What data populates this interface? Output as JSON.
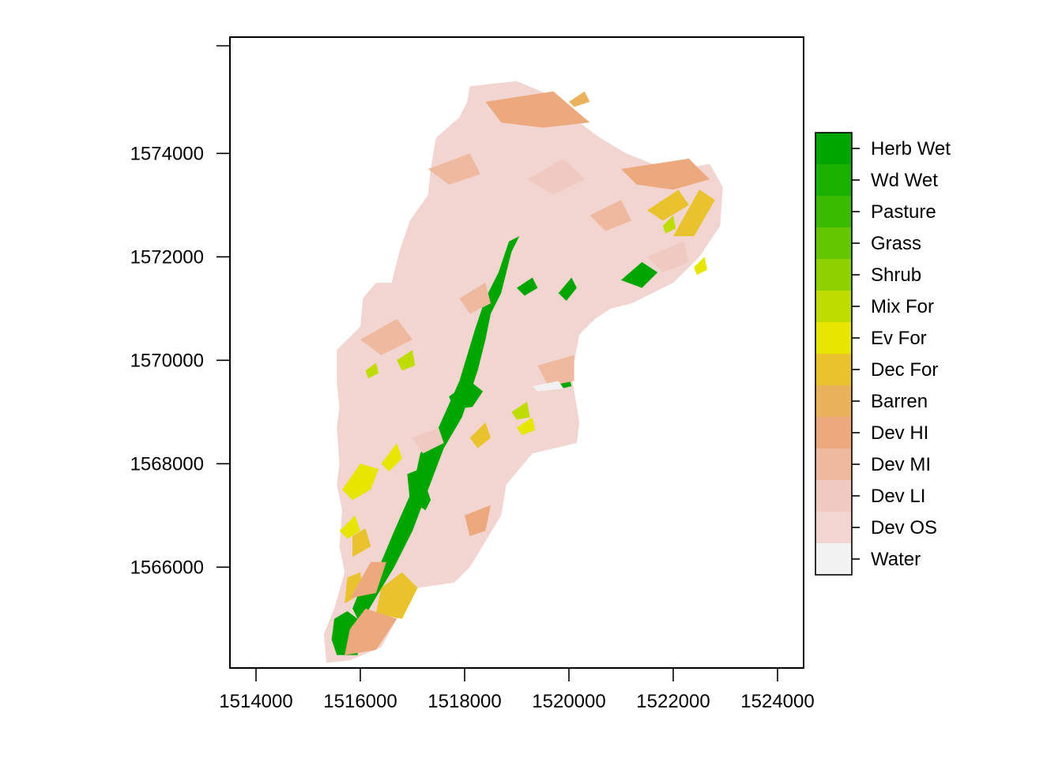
{
  "chart_data": {
    "type": "heatmap",
    "subtype": "land-cover raster map",
    "title": "",
    "xlabel": "",
    "ylabel": "",
    "xlim": [
      1513500,
      1524500
    ],
    "ylim": [
      1564050,
      1576250
    ],
    "x_ticks": [
      1514000,
      1516000,
      1518000,
      1520000,
      1522000,
      1524000
    ],
    "y_ticks": [
      1566000,
      1568000,
      1570000,
      1572000,
      1574000
    ],
    "x_tick_labels": [
      "1514000",
      "1516000",
      "1518000",
      "1520000",
      "1522000",
      "1524000"
    ],
    "y_tick_labels": [
      "1566000",
      "1568000",
      "1570000",
      "1572000",
      "1574000"
    ],
    "grid": false,
    "legend_position": "right",
    "background_color": "#f2d4d0",
    "legend": [
      {
        "label": "Herb Wet",
        "color": "#00a600"
      },
      {
        "label": "Wd Wet",
        "color": "#19b000"
      },
      {
        "label": "Pasture",
        "color": "#3bbb00"
      },
      {
        "label": "Grass",
        "color": "#63c600"
      },
      {
        "label": "Shrub",
        "color": "#8fd100"
      },
      {
        "label": "Mix For",
        "color": "#bfdc00"
      },
      {
        "label": "Ev For",
        "color": "#e6e600"
      },
      {
        "label": "Dec For",
        "color": "#e8c32e"
      },
      {
        "label": "Barren",
        "color": "#ebb25e"
      },
      {
        "label": "Dev HI",
        "color": "#eda97e"
      },
      {
        "label": "Dev MI",
        "color": "#eeb99f"
      },
      {
        "label": "Dev LI",
        "color": "#f0c9c0"
      },
      {
        "label": "Dev OS",
        "color": "#f2d4d0"
      },
      {
        "label": "Water",
        "color": "#f2f2f2"
      }
    ],
    "region_boundary": [
      [
        1515350,
        1564150
      ],
      [
        1515300,
        1564700
      ],
      [
        1515500,
        1565200
      ],
      [
        1515700,
        1565900
      ],
      [
        1515600,
        1566400
      ],
      [
        1515650,
        1567100
      ],
      [
        1515550,
        1567600
      ],
      [
        1515600,
        1568000
      ],
      [
        1515550,
        1568700
      ],
      [
        1515600,
        1569100
      ],
      [
        1515550,
        1569550
      ],
      [
        1515550,
        1570200
      ],
      [
        1515750,
        1570400
      ],
      [
        1516000,
        1570650
      ],
      [
        1516050,
        1571200
      ],
      [
        1516300,
        1571500
      ],
      [
        1516600,
        1571500
      ],
      [
        1516750,
        1572100
      ],
      [
        1516950,
        1572700
      ],
      [
        1517300,
        1573200
      ],
      [
        1517350,
        1573700
      ],
      [
        1517450,
        1574300
      ],
      [
        1517900,
        1574700
      ],
      [
        1518050,
        1575000
      ],
      [
        1518100,
        1575300
      ],
      [
        1519000,
        1575400
      ],
      [
        1519700,
        1575100
      ],
      [
        1520200,
        1574600
      ],
      [
        1520600,
        1574300
      ],
      [
        1521100,
        1574000
      ],
      [
        1521600,
        1573800
      ],
      [
        1522200,
        1573700
      ],
      [
        1522700,
        1573800
      ],
      [
        1522950,
        1573350
      ],
      [
        1522900,
        1572600
      ],
      [
        1522500,
        1572000
      ],
      [
        1522000,
        1571500
      ],
      [
        1521200,
        1571100
      ],
      [
        1520800,
        1571000
      ],
      [
        1520500,
        1570800
      ],
      [
        1520200,
        1570500
      ],
      [
        1520050,
        1569700
      ],
      [
        1520200,
        1568800
      ],
      [
        1520150,
        1568400
      ],
      [
        1519300,
        1568200
      ],
      [
        1518800,
        1567600
      ],
      [
        1518700,
        1567000
      ],
      [
        1518400,
        1566500
      ],
      [
        1518100,
        1566000
      ],
      [
        1517800,
        1565700
      ],
      [
        1517100,
        1565600
      ],
      [
        1516700,
        1565000
      ],
      [
        1516400,
        1564450
      ],
      [
        1515800,
        1564200
      ]
    ],
    "patches": [
      {
        "class": "Herb Wet",
        "polygon": [
          [
            1515550,
            1564300
          ],
          [
            1515950,
            1564300
          ],
          [
            1515950,
            1565000
          ],
          [
            1515750,
            1565150
          ],
          [
            1515500,
            1565000
          ],
          [
            1515450,
            1564600
          ]
        ]
      },
      {
        "class": "Herb Wet",
        "polygon": [
          [
            1516000,
            1564900
          ],
          [
            1516350,
            1565500
          ],
          [
            1516650,
            1566000
          ],
          [
            1517000,
            1566700
          ],
          [
            1517300,
            1567500
          ],
          [
            1517600,
            1568300
          ],
          [
            1517950,
            1568900
          ],
          [
            1518250,
            1569800
          ],
          [
            1518400,
            1570400
          ],
          [
            1518500,
            1570900
          ],
          [
            1518700,
            1571300
          ],
          [
            1518900,
            1572100
          ],
          [
            1519050,
            1572400
          ],
          [
            1518850,
            1572300
          ],
          [
            1518650,
            1571700
          ],
          [
            1518400,
            1571200
          ],
          [
            1518200,
            1570600
          ],
          [
            1517900,
            1569600
          ],
          [
            1517500,
            1568700
          ],
          [
            1517150,
            1568200
          ],
          [
            1517000,
            1567500
          ],
          [
            1516650,
            1566700
          ],
          [
            1516400,
            1566100
          ],
          [
            1516050,
            1565700
          ],
          [
            1515850,
            1565200
          ]
        ]
      },
      {
        "class": "Herb Wet",
        "polygon": [
          [
            1516900,
            1567800
          ],
          [
            1517150,
            1567900
          ],
          [
            1517350,
            1567300
          ],
          [
            1517250,
            1567100
          ],
          [
            1516950,
            1567300
          ]
        ]
      },
      {
        "class": "Herb Wet",
        "polygon": [
          [
            1517700,
            1569300
          ],
          [
            1518100,
            1569600
          ],
          [
            1518350,
            1569400
          ],
          [
            1518150,
            1569100
          ],
          [
            1517800,
            1569050
          ]
        ]
      },
      {
        "class": "Herb Wet",
        "polygon": [
          [
            1519000,
            1571400
          ],
          [
            1519300,
            1571600
          ],
          [
            1519400,
            1571400
          ],
          [
            1519150,
            1571250
          ]
        ]
      },
      {
        "class": "Herb Wet",
        "polygon": [
          [
            1519800,
            1571300
          ],
          [
            1520050,
            1571600
          ],
          [
            1520150,
            1571400
          ],
          [
            1519950,
            1571150
          ]
        ]
      },
      {
        "class": "Herb Wet",
        "polygon": [
          [
            1519800,
            1569600
          ],
          [
            1520000,
            1569700
          ],
          [
            1520050,
            1569500
          ],
          [
            1519850,
            1569450
          ]
        ]
      },
      {
        "class": "Herb Wet",
        "polygon": [
          [
            1521000,
            1571550
          ],
          [
            1521400,
            1571900
          ],
          [
            1521700,
            1571700
          ],
          [
            1521400,
            1571400
          ]
        ]
      },
      {
        "class": "Dec For",
        "polygon": [
          [
            1516300,
            1565100
          ],
          [
            1516800,
            1565000
          ],
          [
            1517100,
            1565600
          ],
          [
            1516800,
            1565900
          ],
          [
            1516400,
            1565600
          ]
        ]
      },
      {
        "class": "Dec For",
        "polygon": [
          [
            1515700,
            1565300
          ],
          [
            1516050,
            1565500
          ],
          [
            1516000,
            1565900
          ],
          [
            1515750,
            1565800
          ]
        ]
      },
      {
        "class": "Dec For",
        "polygon": [
          [
            1515850,
            1566200
          ],
          [
            1516200,
            1566400
          ],
          [
            1516100,
            1566750
          ],
          [
            1515850,
            1566600
          ]
        ]
      },
      {
        "class": "Dec For",
        "polygon": [
          [
            1522000,
            1572400
          ],
          [
            1522500,
            1573300
          ],
          [
            1522800,
            1573100
          ],
          [
            1522400,
            1572400
          ]
        ]
      },
      {
        "class": "Dec For",
        "polygon": [
          [
            1521500,
            1572900
          ],
          [
            1522100,
            1573300
          ],
          [
            1522300,
            1573000
          ],
          [
            1521800,
            1572700
          ]
        ]
      },
      {
        "class": "Dec For",
        "polygon": [
          [
            1518100,
            1568500
          ],
          [
            1518400,
            1568800
          ],
          [
            1518500,
            1568500
          ],
          [
            1518250,
            1568300
          ]
        ]
      },
      {
        "class": "Ev For",
        "polygon": [
          [
            1515650,
            1567500
          ],
          [
            1516000,
            1568000
          ],
          [
            1516350,
            1567900
          ],
          [
            1516200,
            1567500
          ],
          [
            1515850,
            1567300
          ]
        ]
      },
      {
        "class": "Ev For",
        "polygon": [
          [
            1516400,
            1568000
          ],
          [
            1516700,
            1568400
          ],
          [
            1516800,
            1568100
          ],
          [
            1516550,
            1567850
          ]
        ]
      },
      {
        "class": "Ev For",
        "polygon": [
          [
            1515600,
            1566700
          ],
          [
            1515900,
            1567000
          ],
          [
            1516000,
            1566700
          ],
          [
            1515750,
            1566550
          ]
        ]
      },
      {
        "class": "Ev For",
        "polygon": [
          [
            1519000,
            1568700
          ],
          [
            1519300,
            1568900
          ],
          [
            1519350,
            1568650
          ],
          [
            1519100,
            1568550
          ]
        ]
      },
      {
        "class": "Ev For",
        "polygon": [
          [
            1522400,
            1571800
          ],
          [
            1522600,
            1572000
          ],
          [
            1522650,
            1571750
          ],
          [
            1522450,
            1571650
          ]
        ]
      },
      {
        "class": "Mix For",
        "polygon": [
          [
            1516700,
            1570000
          ],
          [
            1517000,
            1570200
          ],
          [
            1517050,
            1569900
          ],
          [
            1516800,
            1569800
          ]
        ]
      },
      {
        "class": "Mix For",
        "polygon": [
          [
            1518900,
            1569000
          ],
          [
            1519200,
            1569200
          ],
          [
            1519250,
            1568900
          ],
          [
            1519000,
            1568850
          ]
        ]
      },
      {
        "class": "Mix For",
        "polygon": [
          [
            1521800,
            1572600
          ],
          [
            1522000,
            1572800
          ],
          [
            1522050,
            1572550
          ],
          [
            1521850,
            1572450
          ]
        ]
      },
      {
        "class": "Mix For",
        "polygon": [
          [
            1516100,
            1569800
          ],
          [
            1516300,
            1569950
          ],
          [
            1516350,
            1569750
          ],
          [
            1516150,
            1569650
          ]
        ]
      },
      {
        "class": "Barren",
        "polygon": [
          [
            1520000,
            1575000
          ],
          [
            1520300,
            1575200
          ],
          [
            1520400,
            1575000
          ],
          [
            1520100,
            1574900
          ]
        ]
      },
      {
        "class": "Dev HI",
        "polygon": [
          [
            1518400,
            1575000
          ],
          [
            1519700,
            1575200
          ],
          [
            1520400,
            1574600
          ],
          [
            1519500,
            1574500
          ],
          [
            1518700,
            1574600
          ]
        ]
      },
      {
        "class": "Dev HI",
        "polygon": [
          [
            1515700,
            1564300
          ],
          [
            1516300,
            1564400
          ],
          [
            1516700,
            1565000
          ],
          [
            1516100,
            1565200
          ],
          [
            1515800,
            1564800
          ]
        ]
      },
      {
        "class": "Dev HI",
        "polygon": [
          [
            1521000,
            1573700
          ],
          [
            1522300,
            1573900
          ],
          [
            1522700,
            1573500
          ],
          [
            1522000,
            1573300
          ],
          [
            1521300,
            1573400
          ]
        ]
      },
      {
        "class": "Dev HI",
        "polygon": [
          [
            1515800,
            1565400
          ],
          [
            1516200,
            1566100
          ],
          [
            1516500,
            1566100
          ],
          [
            1516300,
            1565500
          ]
        ]
      },
      {
        "class": "Dev HI",
        "polygon": [
          [
            1518000,
            1567000
          ],
          [
            1518500,
            1567200
          ],
          [
            1518400,
            1566700
          ],
          [
            1518100,
            1566600
          ]
        ]
      },
      {
        "class": "Dev MI",
        "polygon": [
          [
            1517300,
            1573700
          ],
          [
            1518100,
            1574000
          ],
          [
            1518300,
            1573600
          ],
          [
            1517700,
            1573400
          ]
        ]
      },
      {
        "class": "Dev MI",
        "polygon": [
          [
            1520400,
            1572800
          ],
          [
            1521000,
            1573100
          ],
          [
            1521200,
            1572700
          ],
          [
            1520700,
            1572500
          ]
        ]
      },
      {
        "class": "Dev MI",
        "polygon": [
          [
            1516000,
            1570400
          ],
          [
            1516700,
            1570800
          ],
          [
            1517000,
            1570400
          ],
          [
            1516400,
            1570100
          ]
        ]
      },
      {
        "class": "Dev MI",
        "polygon": [
          [
            1519400,
            1569900
          ],
          [
            1520100,
            1570100
          ],
          [
            1520100,
            1569600
          ],
          [
            1519600,
            1569500
          ]
        ]
      },
      {
        "class": "Dev MI",
        "polygon": [
          [
            1517900,
            1571200
          ],
          [
            1518400,
            1571500
          ],
          [
            1518500,
            1571100
          ],
          [
            1518100,
            1570900
          ]
        ]
      },
      {
        "class": "Dev LI",
        "polygon": [
          [
            1519200,
            1573500
          ],
          [
            1519900,
            1573900
          ],
          [
            1520300,
            1573500
          ],
          [
            1519700,
            1573200
          ]
        ]
      },
      {
        "class": "Dev LI",
        "polygon": [
          [
            1517000,
            1568500
          ],
          [
            1517500,
            1568700
          ],
          [
            1517600,
            1568400
          ],
          [
            1517200,
            1568200
          ]
        ]
      },
      {
        "class": "Dev LI",
        "polygon": [
          [
            1521500,
            1572000
          ],
          [
            1522200,
            1572300
          ],
          [
            1522300,
            1571900
          ],
          [
            1521800,
            1571700
          ]
        ]
      },
      {
        "class": "Water",
        "polygon": [
          [
            1519300,
            1569500
          ],
          [
            1519800,
            1569600
          ],
          [
            1519900,
            1569450
          ],
          [
            1519400,
            1569400
          ]
        ]
      }
    ]
  }
}
